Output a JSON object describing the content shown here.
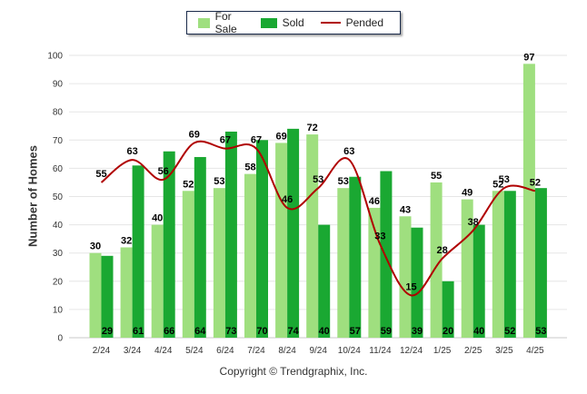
{
  "chart_data": {
    "type": "bar",
    "title": "",
    "xlabel": "",
    "ylabel": "Number of Homes",
    "ylim": [
      0,
      100
    ],
    "yticks": [
      0,
      10,
      20,
      30,
      40,
      50,
      60,
      70,
      80,
      90,
      100
    ],
    "categories": [
      "2/24",
      "3/24",
      "4/24",
      "5/24",
      "6/24",
      "7/24",
      "8/24",
      "9/24",
      "10/24",
      "11/24",
      "12/24",
      "1/25",
      "2/25",
      "3/25",
      "4/25"
    ],
    "series": [
      {
        "name": "For Sale",
        "type": "bar",
        "color": "#9fdf7f",
        "values": [
          30,
          32,
          40,
          52,
          53,
          58,
          69,
          72,
          53,
          46,
          43,
          55,
          49,
          52,
          97
        ]
      },
      {
        "name": "Sold",
        "type": "bar",
        "color": "#1aa832",
        "values": [
          29,
          61,
          66,
          64,
          73,
          70,
          74,
          40,
          57,
          59,
          39,
          20,
          40,
          52,
          53
        ]
      },
      {
        "name": "Pended",
        "type": "line",
        "color": "#b00000",
        "values": [
          55,
          63,
          56,
          69,
          67,
          67,
          46,
          53,
          63,
          33,
          15,
          28,
          38,
          53,
          52
        ]
      }
    ],
    "grid": true,
    "legend_position": "top-center"
  },
  "footer": {
    "copyright": "Copyright © Trendgraphix, Inc."
  }
}
